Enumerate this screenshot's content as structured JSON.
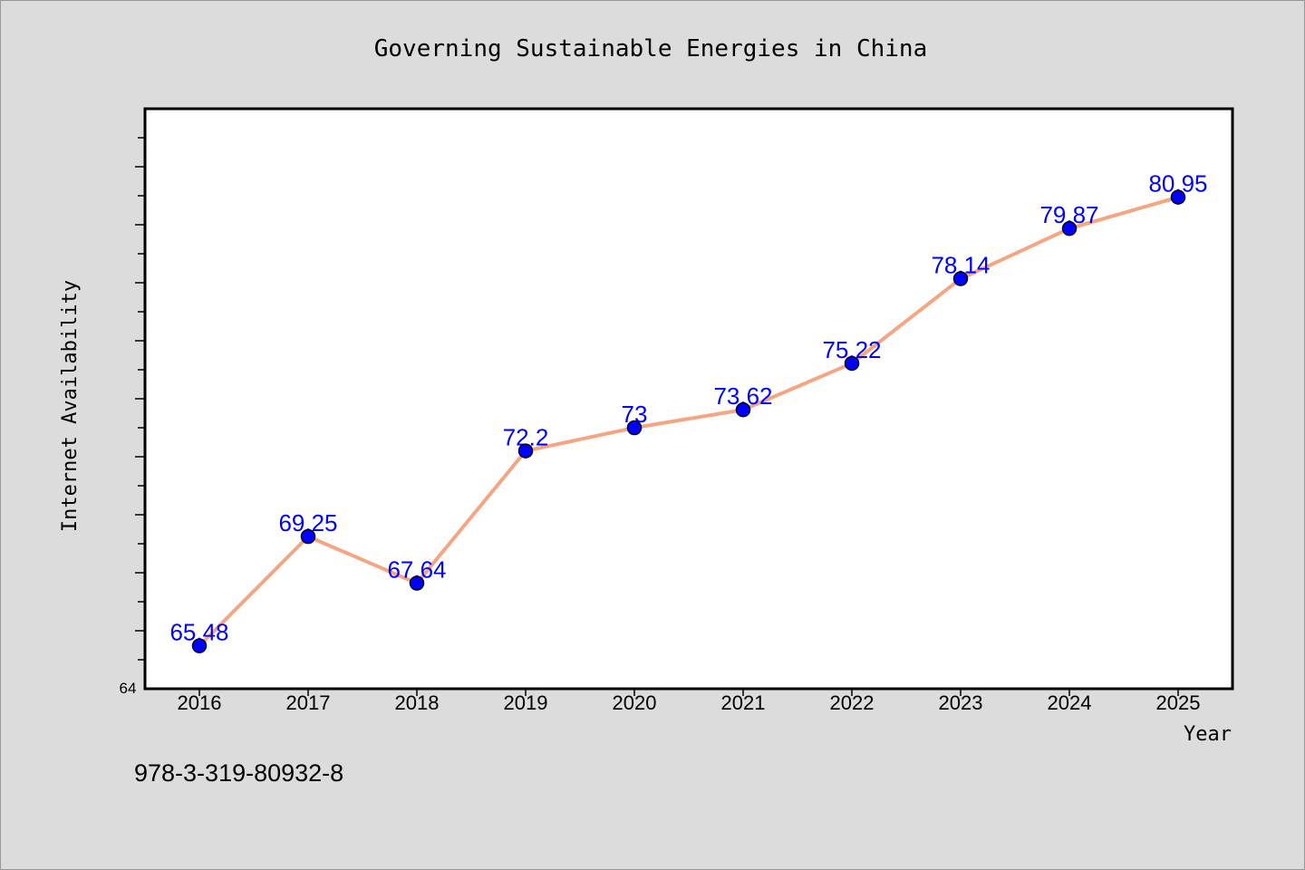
{
  "chart_data": {
    "type": "line",
    "title": "Governing Sustainable Energies in China",
    "xlabel": "Year",
    "ylabel": "Internet Availability",
    "categories": [
      "2016",
      "2017",
      "2018",
      "2019",
      "2020",
      "2021",
      "2022",
      "2023",
      "2024",
      "2025"
    ],
    "series": [
      {
        "values": [
          65.48,
          69.25,
          67.64,
          72.2,
          73,
          73.62,
          75.22,
          78.14,
          79.87,
          80.95
        ],
        "labels": [
          "65.48",
          "69.25",
          "67.64",
          "72.2",
          "73",
          "73.62",
          "75.22",
          "78.14",
          "79.87",
          "80.95"
        ]
      }
    ],
    "ylim": [
      64,
      84
    ],
    "y_tick_labels": [
      "64"
    ],
    "grid": false,
    "legend": "none",
    "colors": {
      "line": "#f4a582",
      "marker": "#0000ff",
      "data_label": "#0000ff",
      "plot_background": "#ffffff",
      "figure_background": "#dcdcdc"
    }
  },
  "footer": {
    "isbn": "978-3-319-80932-8"
  }
}
